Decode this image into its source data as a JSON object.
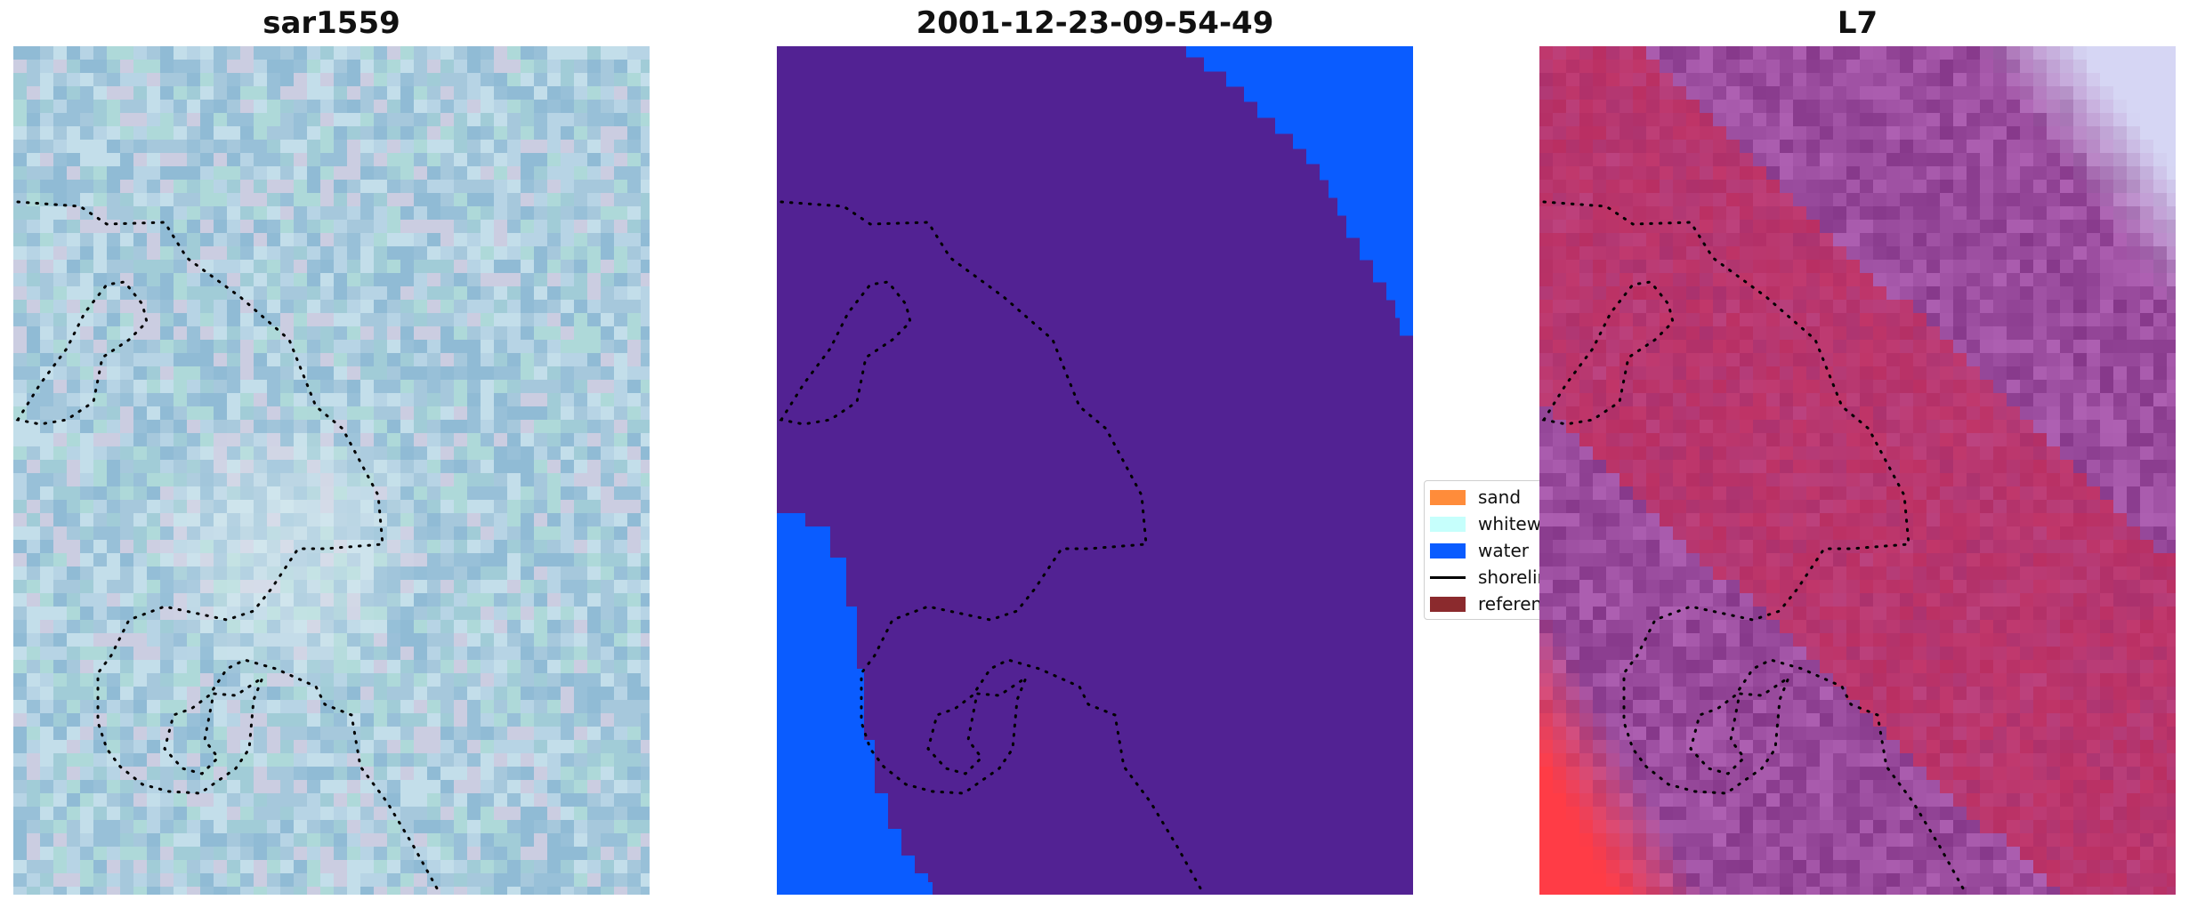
{
  "panels": [
    {
      "title": "sar1559"
    },
    {
      "title": "2001-12-23-09-54-49"
    },
    {
      "title": "L7"
    }
  ],
  "legend": {
    "items": [
      {
        "label": "sand",
        "color": "#ff8c3a",
        "kind": "patch"
      },
      {
        "label": "whitewater",
        "color": "#c6fffc",
        "kind": "patch"
      },
      {
        "label": "water",
        "color": "#0a5cff",
        "kind": "patch"
      },
      {
        "label": "shoreline",
        "color": "#000000",
        "kind": "line"
      },
      {
        "label": "reference",
        "color": "#8b2a2d",
        "kind": "patch"
      }
    ]
  },
  "colors": {
    "classification_background": "#522293",
    "water": "#0a5cff",
    "sar_base": "#a6c8dc",
    "l7_base": "#9a4c9e",
    "l7_land": "#c72c57",
    "l7_white": "#d6d6f4"
  }
}
